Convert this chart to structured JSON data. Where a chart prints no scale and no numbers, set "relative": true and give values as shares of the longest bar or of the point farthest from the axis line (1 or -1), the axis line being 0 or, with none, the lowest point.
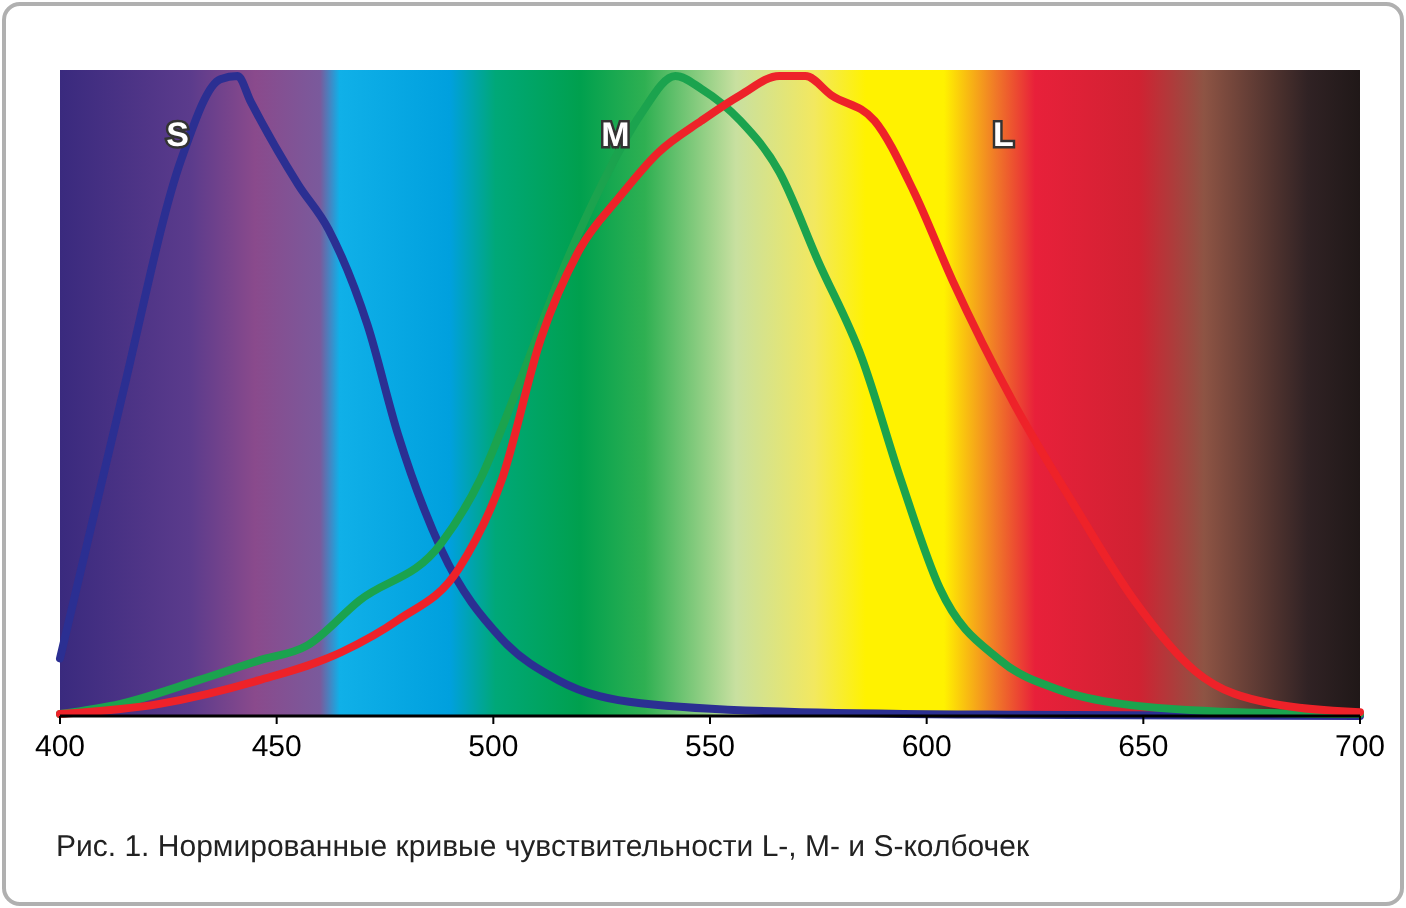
{
  "chart_data": {
    "type": "line",
    "relative": true,
    "title": "Рис. 1. Нормированные кривые чувствительности L-, M- и S-колбочек",
    "xlim": [
      400,
      700
    ],
    "xticks": [
      400,
      450,
      500,
      550,
      600,
      650,
      700
    ],
    "grid": false,
    "series": [
      {
        "name": "S",
        "color": "#2b2f92",
        "x": [
          400,
          414,
          428,
          437,
          441,
          444,
          455,
          462,
          471,
          478,
          488,
          502,
          515,
          534,
          571,
          620,
          700
        ],
        "values": [
          0.09,
          0.49,
          0.87,
          0.995,
          1.0,
          0.96,
          0.83,
          0.76,
          0.61,
          0.44,
          0.26,
          0.12,
          0.056,
          0.02,
          0.006,
          0.002,
          0
        ]
      },
      {
        "name": "M",
        "color": "#1ba34e",
        "x": [
          400,
          414,
          432,
          446,
          457,
          469,
          488,
          497,
          506,
          515,
          525,
          534,
          542,
          548,
          557,
          566,
          575,
          585,
          594,
          603,
          617,
          631,
          645,
          672,
          700
        ],
        "values": [
          0.003,
          0.019,
          0.056,
          0.087,
          0.11,
          0.18,
          0.27,
          0.37,
          0.52,
          0.68,
          0.83,
          0.94,
          1.0,
          0.98,
          0.93,
          0.85,
          0.71,
          0.56,
          0.37,
          0.2,
          0.087,
          0.04,
          0.019,
          0.006,
          0.003
        ]
      },
      {
        "name": "L",
        "color": "#ee2229",
        "x": [
          400,
          423,
          446,
          465,
          478,
          492,
          502,
          511,
          520,
          529,
          538,
          548,
          557,
          566,
          572,
          578,
          588,
          597,
          606,
          620,
          634,
          648,
          662,
          680,
          700
        ],
        "values": [
          0.003,
          0.019,
          0.056,
          0.1,
          0.15,
          0.23,
          0.37,
          0.59,
          0.73,
          0.81,
          0.88,
          0.93,
          0.97,
          1.0,
          1.0,
          0.97,
          0.93,
          0.82,
          0.68,
          0.49,
          0.33,
          0.18,
          0.07,
          0.019,
          0.006
        ]
      }
    ]
  }
}
